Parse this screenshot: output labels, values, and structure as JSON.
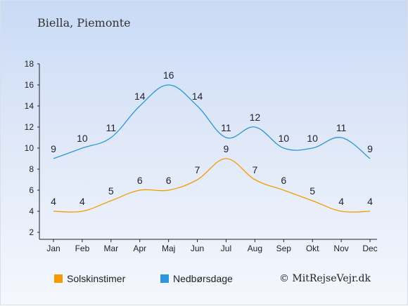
{
  "header": {
    "location": "Biella, Piemonte"
  },
  "legend": {
    "sun_label": "Solskinstimer",
    "rain_label": "Nedbørsdage"
  },
  "credit": "© MitRejseVejr.dk",
  "colors": {
    "sun": "#f59b00",
    "rain": "#2b95dd"
  },
  "chart_data": {
    "type": "line",
    "categories": [
      "Jan",
      "Feb",
      "Mar",
      "Apr",
      "Maj",
      "Jun",
      "Jul",
      "Aug",
      "Sep",
      "Okt",
      "Nov",
      "Dec"
    ],
    "series": [
      {
        "name": "Solskinstimer",
        "values": [
          4,
          4,
          5,
          6,
          6,
          7,
          9,
          7,
          6,
          5,
          4,
          4
        ]
      },
      {
        "name": "Nedbørsdage",
        "values": [
          9,
          10,
          11,
          14,
          16,
          14,
          11,
          12,
          10,
          10,
          11,
          9
        ]
      }
    ],
    "ylim": [
      2,
      18
    ],
    "yticks": [
      2,
      4,
      6,
      8,
      10,
      12,
      14,
      16,
      18
    ],
    "grid": false,
    "legend_position": "bottom"
  }
}
